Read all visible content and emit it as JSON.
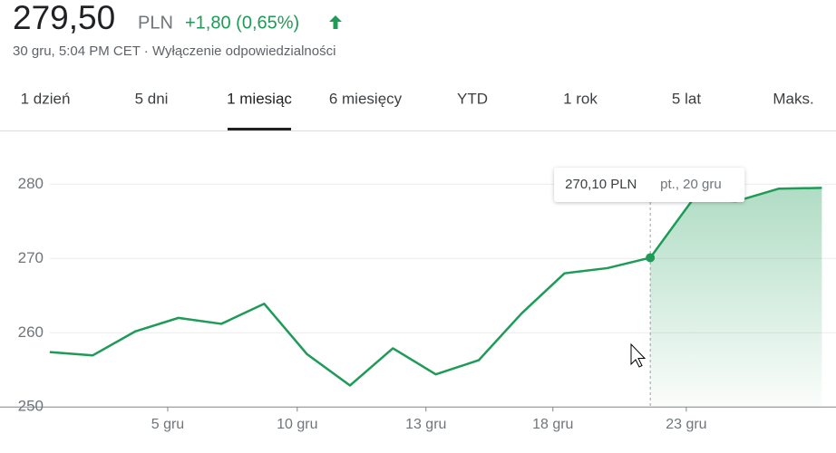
{
  "header": {
    "price": "279,50",
    "currency": "PLN",
    "change": "+1,80 (0,65%)",
    "subtitle": "30 gru, 5:04 PM CET · Wyłączenie odpowiedzialności"
  },
  "tabs": {
    "items": [
      "1 dzień",
      "5 dni",
      "1 miesiąc",
      "6 miesięcy",
      "YTD",
      "1 rok",
      "5 lat",
      "Maks."
    ],
    "selected": "1 miesiąc"
  },
  "chart_data": {
    "type": "line",
    "color": "#1e9b57",
    "x": [
      0,
      1,
      2,
      3,
      4,
      5,
      6,
      7,
      8,
      9,
      10,
      11,
      12,
      13,
      14,
      15,
      16,
      17,
      18
    ],
    "values": [
      257.4,
      256.95,
      260.2,
      262.0,
      261.2,
      263.9,
      257.1,
      252.9,
      257.9,
      254.4,
      256.3,
      262.6,
      268.0,
      268.7,
      270.1,
      278.0,
      277.7,
      279.4,
      279.5
    ],
    "xlim": [
      -1.16,
      18.33
    ],
    "xticks": [
      {
        "value": 2.75,
        "label": "5 gru"
      },
      {
        "value": 5.77,
        "label": "10 gru"
      },
      {
        "value": 8.77,
        "label": "13 gru"
      },
      {
        "value": 11.73,
        "label": "18 gru"
      },
      {
        "value": 14.84,
        "label": "23 gru"
      }
    ],
    "ylim": [
      249.3,
      286.5
    ],
    "yticks": [
      250,
      260,
      270,
      280
    ],
    "grid": true,
    "tooltip": {
      "x": 14,
      "price": "270,10 PLN",
      "date": "pt., 20 gru"
    }
  }
}
